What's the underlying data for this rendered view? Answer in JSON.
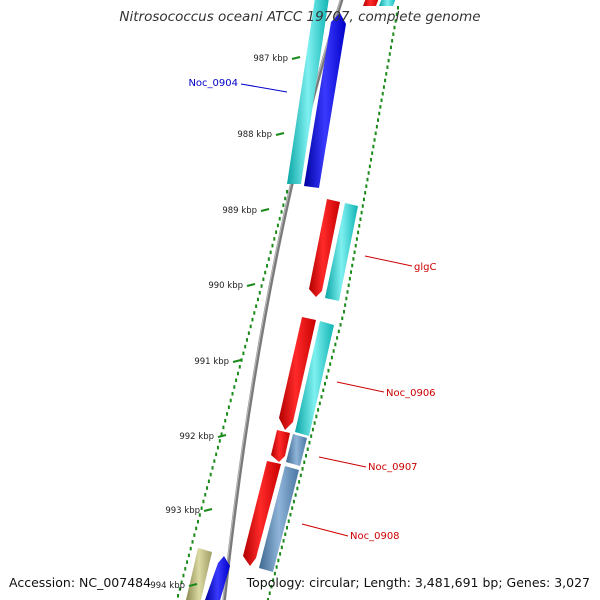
{
  "title": "Nitrosococcus oceani ATCC 19707, complete genome",
  "footer": {
    "accession": "Accession: NC_007484",
    "summary": "Topology: circular; Length: 3,481,691 bp; Genes: 3,027"
  },
  "ticks": [
    "987 kbp",
    "988 kbp",
    "989 kbp",
    "990 kbp",
    "991 kbp",
    "992 kbp",
    "993 kbp",
    "994 kbp"
  ],
  "gene_labels": [
    {
      "text": "Noc_0904",
      "color": "#0000cc"
    },
    {
      "text": "glgC",
      "color": "#cc0000"
    },
    {
      "text": "Noc_0906",
      "color": "#cc0000"
    },
    {
      "text": "Noc_0907",
      "color": "#cc0000"
    },
    {
      "text": "Noc_0908",
      "color": "#cc0000"
    }
  ],
  "colors": {
    "backbone": "#888888",
    "cds": "#ff0000",
    "blast_cyan": "#1cc8c8",
    "blast_blue": "#0000ee",
    "blast_steel": "#4f7fae",
    "blast_olive": "#b5b37a",
    "dots": "#1a8a1a"
  }
}
